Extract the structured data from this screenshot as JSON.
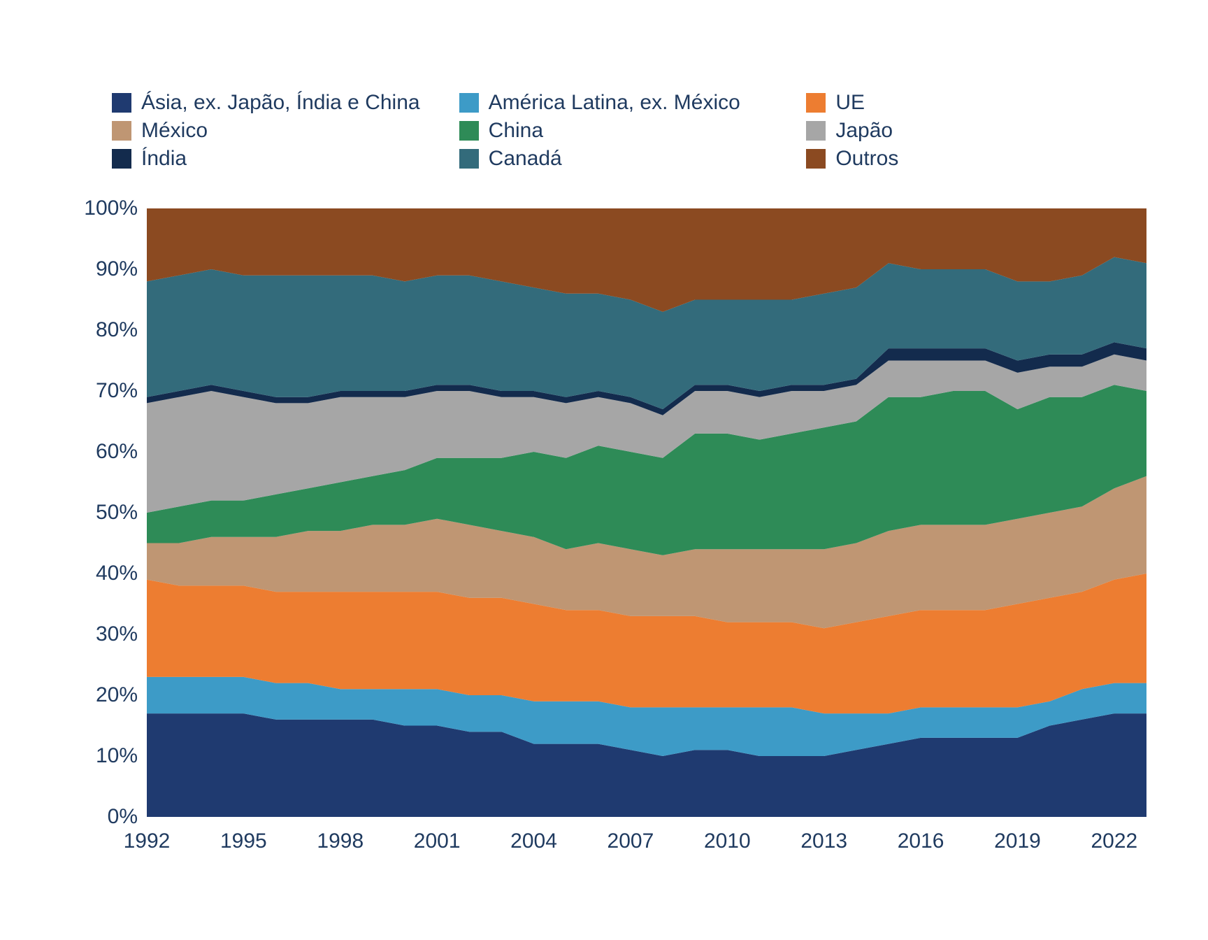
{
  "chart": {
    "type": "stacked-area",
    "background_color": "#ffffff",
    "text_color": "#1f3a5f",
    "label_fontsize": 30,
    "legend_fontsize": 30,
    "years": [
      1992,
      1993,
      1994,
      1995,
      1996,
      1997,
      1998,
      1999,
      2000,
      2001,
      2002,
      2003,
      2004,
      2005,
      2006,
      2007,
      2008,
      2009,
      2010,
      2011,
      2012,
      2013,
      2014,
      2015,
      2016,
      2017,
      2018,
      2019,
      2020,
      2021,
      2022,
      2023
    ],
    "x_ticks": [
      1992,
      1995,
      1998,
      2001,
      2004,
      2007,
      2010,
      2013,
      2016,
      2019,
      2022
    ],
    "y_ticks": [
      0,
      10,
      20,
      30,
      40,
      50,
      60,
      70,
      80,
      90,
      100
    ],
    "y_tick_suffix": "%",
    "ylim": [
      0,
      100
    ],
    "series": [
      {
        "key": "asia_ex",
        "label": "Ásia, ex. Japão, Índia e China",
        "color": "#1f3a70",
        "values": [
          17,
          17,
          17,
          17,
          16,
          16,
          16,
          16,
          15,
          15,
          14,
          14,
          12,
          12,
          12,
          11,
          10,
          11,
          11,
          10,
          10,
          10,
          11,
          12,
          13,
          13,
          13,
          13,
          15,
          16,
          17,
          17
        ]
      },
      {
        "key": "latam_ex",
        "label": "América Latina, ex. México",
        "color": "#3d9bc7",
        "values": [
          6,
          6,
          6,
          6,
          6,
          6,
          5,
          5,
          6,
          6,
          6,
          6,
          7,
          7,
          7,
          7,
          8,
          7,
          7,
          8,
          8,
          7,
          6,
          5,
          5,
          5,
          5,
          5,
          4,
          5,
          5,
          5
        ]
      },
      {
        "key": "ue",
        "label": "UE",
        "color": "#ed7d31",
        "values": [
          16,
          15,
          15,
          15,
          15,
          15,
          16,
          16,
          16,
          16,
          16,
          16,
          16,
          15,
          15,
          15,
          15,
          15,
          14,
          14,
          14,
          14,
          15,
          16,
          16,
          16,
          16,
          17,
          17,
          16,
          17,
          18
        ]
      },
      {
        "key": "mexico",
        "label": "México",
        "color": "#bf9673",
        "values": [
          6,
          7,
          8,
          8,
          9,
          10,
          10,
          11,
          11,
          12,
          12,
          11,
          11,
          10,
          11,
          11,
          10,
          11,
          12,
          12,
          12,
          13,
          13,
          14,
          14,
          14,
          14,
          14,
          14,
          14,
          15,
          16
        ]
      },
      {
        "key": "china",
        "label": "China",
        "color": "#2e8b57",
        "values": [
          5,
          6,
          6,
          6,
          7,
          7,
          8,
          8,
          9,
          10,
          11,
          12,
          14,
          15,
          16,
          16,
          16,
          19,
          19,
          18,
          19,
          20,
          20,
          22,
          21,
          22,
          22,
          18,
          19,
          18,
          17,
          14
        ]
      },
      {
        "key": "japao",
        "label": "Japão",
        "color": "#a6a6a6",
        "values": [
          18,
          18,
          18,
          17,
          15,
          14,
          14,
          13,
          12,
          11,
          11,
          10,
          9,
          9,
          8,
          8,
          7,
          7,
          7,
          7,
          7,
          6,
          6,
          6,
          6,
          5,
          5,
          6,
          5,
          5,
          5,
          5
        ]
      },
      {
        "key": "india",
        "label": "Índia",
        "color": "#132b4d",
        "values": [
          1,
          1,
          1,
          1,
          1,
          1,
          1,
          1,
          1,
          1,
          1,
          1,
          1,
          1,
          1,
          1,
          1,
          1,
          1,
          1,
          1,
          1,
          1,
          2,
          2,
          2,
          2,
          2,
          2,
          2,
          2,
          2
        ]
      },
      {
        "key": "canada",
        "label": "Canadá",
        "color": "#336b7b",
        "values": [
          19,
          19,
          19,
          19,
          20,
          20,
          19,
          19,
          18,
          18,
          18,
          18,
          17,
          17,
          16,
          16,
          16,
          14,
          14,
          15,
          14,
          15,
          15,
          14,
          13,
          13,
          13,
          13,
          12,
          13,
          14,
          14
        ]
      },
      {
        "key": "outros",
        "label": "Outros",
        "color": "#8b4a21",
        "values": [
          12,
          11,
          10,
          11,
          11,
          11,
          11,
          11,
          12,
          11,
          11,
          12,
          13,
          14,
          14,
          15,
          17,
          15,
          15,
          15,
          15,
          14,
          13,
          9,
          10,
          10,
          10,
          12,
          12,
          11,
          8,
          9
        ]
      }
    ],
    "legend_order": [
      "asia_ex",
      "latam_ex",
      "ue",
      "mexico",
      "china",
      "japao",
      "india",
      "canada",
      "outros"
    ]
  }
}
